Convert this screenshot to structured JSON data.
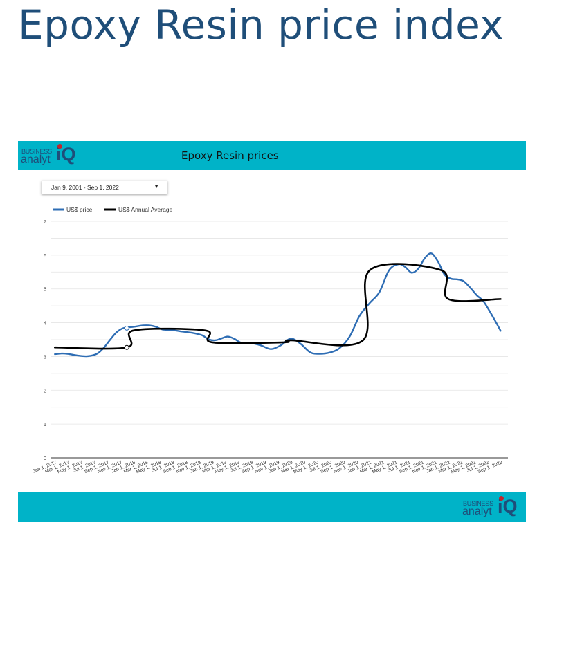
{
  "page": {
    "title": "Epoxy Resin price index"
  },
  "header_band": {
    "title": "Epoxy Resin prices"
  },
  "logo": {
    "line1": "BUSINESS",
    "line2": "analyt",
    "mark": "iQ"
  },
  "date_filter": {
    "value": "Jan 9, 2001 - Sep 1, 2022",
    "icon": "caret-down-icon"
  },
  "colors": {
    "band": "#00b3c8",
    "title": "#1f4e79",
    "price_series": "#2e6db4",
    "average_series": "#000000",
    "logo_dot": "#c0252b"
  },
  "chart_data": {
    "type": "line",
    "title": "Epoxy Resin prices",
    "xlabel": "",
    "ylabel": "",
    "ylim": [
      0,
      7
    ],
    "yticks": [
      "0",
      "1",
      "2",
      "3",
      "4",
      "5",
      "6",
      "7"
    ],
    "xlim": [
      "2016-12-15",
      "2022-10-05"
    ],
    "xticks": [
      {
        "date": "2017-01-01",
        "label": "Jan 1, 2017"
      },
      {
        "date": "2017-03-01",
        "label": "Mar 1, 2017"
      },
      {
        "date": "2017-05-01",
        "label": "May 1, 2017"
      },
      {
        "date": "2017-07-01",
        "label": "Jul 1, 2017"
      },
      {
        "date": "2017-09-01",
        "label": "Sep 1, 2017"
      },
      {
        "date": "2017-11-01",
        "label": "Nov 1, 2017"
      },
      {
        "date": "2018-01-01",
        "label": "Jan 1, 2018"
      },
      {
        "date": "2018-03-01",
        "label": "Mar 1, 2018"
      },
      {
        "date": "2018-05-01",
        "label": "May 1, 2018"
      },
      {
        "date": "2018-07-01",
        "label": "Jul 1, 2018"
      },
      {
        "date": "2018-09-01",
        "label": "Sep 1, 2018"
      },
      {
        "date": "2018-11-01",
        "label": "Nov 1, 2018"
      },
      {
        "date": "2019-01-01",
        "label": "Jan 1, 2019"
      },
      {
        "date": "2019-03-01",
        "label": "Mar 1, 2019"
      },
      {
        "date": "2019-05-01",
        "label": "May 1, 2019"
      },
      {
        "date": "2019-07-01",
        "label": "Jul 1, 2019"
      },
      {
        "date": "2019-09-01",
        "label": "Sep 1, 2019"
      },
      {
        "date": "2019-11-01",
        "label": "Nov 1, 2019"
      },
      {
        "date": "2020-01-01",
        "label": "Jan 1, 2020"
      },
      {
        "date": "2020-03-01",
        "label": "Mar 1, 2020"
      },
      {
        "date": "2020-05-01",
        "label": "May 1, 2020"
      },
      {
        "date": "2020-07-01",
        "label": "Jul 1, 2020"
      },
      {
        "date": "2020-09-01",
        "label": "Sep 1, 2020"
      },
      {
        "date": "2020-11-01",
        "label": "Nov 1, 2020"
      },
      {
        "date": "2021-01-01",
        "label": "Jan 1, 2021"
      },
      {
        "date": "2021-03-01",
        "label": "Mar 1, 2021"
      },
      {
        "date": "2021-05-01",
        "label": "May 1, 2021"
      },
      {
        "date": "2021-07-01",
        "label": "Jul 1, 2021"
      },
      {
        "date": "2021-09-01",
        "label": "Sep 1, 2021"
      },
      {
        "date": "2021-11-01",
        "label": "Nov 1, 2021"
      },
      {
        "date": "2022-01-01",
        "label": "Jan 1, 2022"
      },
      {
        "date": "2022-03-01",
        "label": "Mar 1, 2022"
      },
      {
        "date": "2022-05-01",
        "label": "May 1, 2022"
      },
      {
        "date": "2022-07-01",
        "label": "Jul 1, 2022"
      },
      {
        "date": "2022-09-01",
        "label": "Sep 1, 2022"
      }
    ],
    "grid": true,
    "legend_position": "top-left",
    "series": [
      {
        "name": "US$ price",
        "color": "#2e6db4",
        "points": [
          [
            "2017-01-01",
            3.07
          ],
          [
            "2017-02-01",
            3.09
          ],
          [
            "2017-03-01",
            3.08
          ],
          [
            "2017-04-15",
            3.03
          ],
          [
            "2017-06-01",
            3.01
          ],
          [
            "2017-07-15",
            3.08
          ],
          [
            "2017-08-15",
            3.25
          ],
          [
            "2017-09-15",
            3.5
          ],
          [
            "2017-10-15",
            3.72
          ],
          [
            "2017-11-15",
            3.84
          ],
          [
            "2018-01-01",
            3.88
          ],
          [
            "2018-02-15",
            3.92
          ],
          [
            "2018-03-15",
            3.92
          ],
          [
            "2018-04-15",
            3.88
          ],
          [
            "2018-05-15",
            3.8
          ],
          [
            "2018-07-01",
            3.78
          ],
          [
            "2018-08-15",
            3.74
          ],
          [
            "2018-10-01",
            3.7
          ],
          [
            "2018-11-15",
            3.63
          ],
          [
            "2018-12-15",
            3.51
          ],
          [
            "2019-01-15",
            3.48
          ],
          [
            "2019-02-15",
            3.54
          ],
          [
            "2019-03-15",
            3.59
          ],
          [
            "2019-04-15",
            3.52
          ],
          [
            "2019-05-15",
            3.41
          ],
          [
            "2019-07-01",
            3.4
          ],
          [
            "2019-08-15",
            3.33
          ],
          [
            "2019-10-01",
            3.22
          ],
          [
            "2019-11-15",
            3.33
          ],
          [
            "2020-01-01",
            3.53
          ],
          [
            "2020-02-15",
            3.38
          ],
          [
            "2020-04-01",
            3.12
          ],
          [
            "2020-05-15",
            3.08
          ],
          [
            "2020-07-01",
            3.12
          ],
          [
            "2020-08-15",
            3.25
          ],
          [
            "2020-10-01",
            3.6
          ],
          [
            "2020-11-15",
            4.2
          ],
          [
            "2021-01-01",
            4.58
          ],
          [
            "2021-02-15",
            4.9
          ],
          [
            "2021-04-01",
            5.55
          ],
          [
            "2021-05-15",
            5.73
          ],
          [
            "2021-06-15",
            5.65
          ],
          [
            "2021-07-15",
            5.48
          ],
          [
            "2021-08-15",
            5.6
          ],
          [
            "2021-09-15",
            5.92
          ],
          [
            "2021-10-15",
            6.05
          ],
          [
            "2021-11-15",
            5.8
          ],
          [
            "2021-12-15",
            5.42
          ],
          [
            "2022-01-15",
            5.3
          ],
          [
            "2022-02-15",
            5.28
          ],
          [
            "2022-03-15",
            5.22
          ],
          [
            "2022-04-15",
            5.02
          ],
          [
            "2022-05-15",
            4.8
          ],
          [
            "2022-06-15",
            4.62
          ],
          [
            "2022-08-01",
            4.12
          ],
          [
            "2022-09-01",
            3.76
          ]
        ],
        "highlight": [
          "2017-12-01",
          3.84
        ]
      },
      {
        "name": "US$ Annual Average",
        "color": "#000000",
        "points": [
          [
            "2017-01-01",
            3.27
          ],
          [
            "2017-12-01",
            3.27
          ],
          [
            "2018-01-01",
            3.77
          ],
          [
            "2018-12-01",
            3.77
          ],
          [
            "2019-01-01",
            3.42
          ],
          [
            "2019-12-01",
            3.42
          ],
          [
            "2020-01-01",
            3.48
          ],
          [
            "2020-12-01",
            3.48
          ],
          [
            "2021-01-01",
            5.55
          ],
          [
            "2021-12-01",
            5.55
          ],
          [
            "2022-01-01",
            4.7
          ],
          [
            "2022-09-01",
            4.7
          ]
        ],
        "highlight": [
          "2017-12-01",
          3.27
        ]
      }
    ]
  }
}
